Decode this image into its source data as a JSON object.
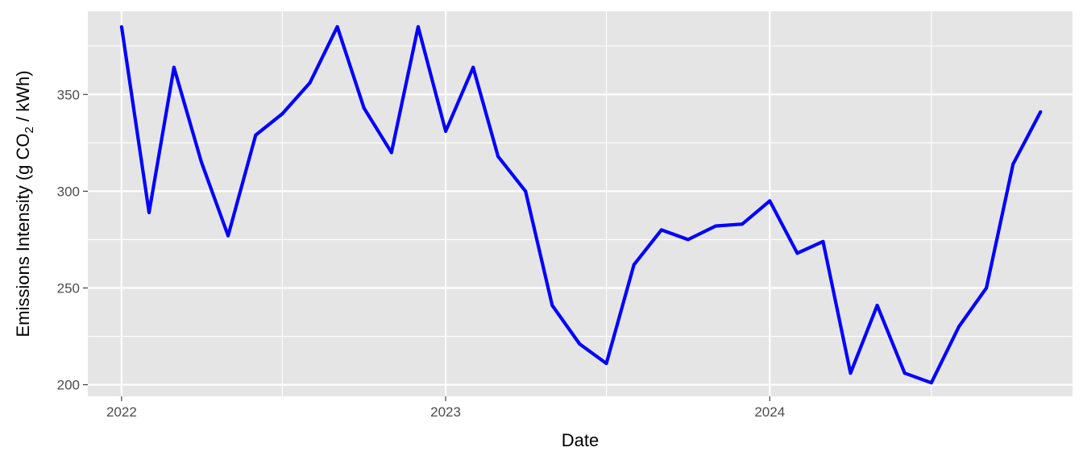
{
  "chart_data": {
    "type": "line",
    "title": "",
    "xlabel": "Date",
    "ylabel": {
      "prefix": "Emissions Intensity (g CO",
      "subscript": "2",
      "suffix": " / kWh)"
    },
    "xlim": [
      "2021-11-24",
      "2024-12-07"
    ],
    "ylim": [
      194,
      393
    ],
    "x_ticks": [
      {
        "date": "2022-01-01",
        "label": "2022"
      },
      {
        "date": "2023-01-01",
        "label": "2023"
      },
      {
        "date": "2024-01-01",
        "label": "2024"
      }
    ],
    "x_minor_ticks": [
      "2022-07-01",
      "2023-07-01",
      "2024-07-01"
    ],
    "y_ticks": [
      200,
      250,
      300,
      350
    ],
    "y_minor_ticks": [
      225,
      275,
      325,
      375
    ],
    "grid": true,
    "legend": "none",
    "colors": {
      "line": "#0000ff",
      "panel": "#e5e5e5",
      "grid": "#ffffff"
    },
    "series": [
      {
        "x": [
          "2022-01-01",
          "2022-02-01",
          "2022-03-01",
          "2022-04-01",
          "2022-05-01",
          "2022-06-01",
          "2022-07-01",
          "2022-08-01",
          "2022-09-01",
          "2022-10-01",
          "2022-11-01",
          "2022-12-01",
          "2023-01-01",
          "2023-02-01",
          "2023-03-01",
          "2023-04-01",
          "2023-05-01",
          "2023-06-01",
          "2023-07-01",
          "2023-08-01",
          "2023-09-01",
          "2023-10-01",
          "2023-11-01",
          "2023-12-01",
          "2024-01-01",
          "2024-02-01",
          "2024-03-01",
          "2024-04-01",
          "2024-05-01",
          "2024-06-01",
          "2024-07-01",
          "2024-08-01",
          "2024-09-01",
          "2024-10-01",
          "2024-11-01"
        ],
        "values": [
          385,
          289,
          364,
          315,
          277,
          329,
          340,
          356,
          385,
          343,
          320,
          385,
          331,
          364,
          318,
          300,
          241,
          221,
          211,
          262,
          280,
          275,
          282,
          283,
          295,
          268,
          274,
          206,
          241,
          206,
          201,
          230,
          250,
          314,
          341
        ]
      }
    ]
  }
}
